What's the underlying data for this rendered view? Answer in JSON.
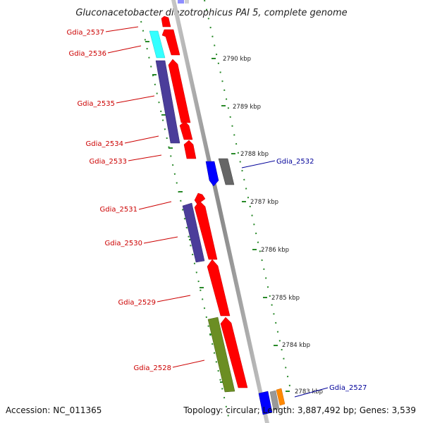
{
  "title": "Gluconacetobacter diazotrophicus PAI 5, complete genome",
  "footer": {
    "accession": "Accession: NC_011365",
    "summary": "Topology: circular; Length: 3,887,492 bp; Genes: 3,539"
  },
  "colors": {
    "reverse_label": "#cc0000",
    "forward_label": "#000099",
    "backbone": "#999999",
    "tick": "#2a8a2a"
  },
  "ticks": [
    "2790 kbp",
    "2789 kbp",
    "2788 kbp",
    "2787 kbp",
    "2786 kbp",
    "2785 kbp",
    "2784 kbp",
    "2783 kbp"
  ],
  "genes": [
    {
      "id": "Gdia_2537",
      "strand": "reverse"
    },
    {
      "id": "Gdia_2536",
      "strand": "reverse"
    },
    {
      "id": "Gdia_2535",
      "strand": "reverse"
    },
    {
      "id": "Gdia_2534",
      "strand": "reverse"
    },
    {
      "id": "Gdia_2533",
      "strand": "reverse"
    },
    {
      "id": "Gdia_2532",
      "strand": "forward"
    },
    {
      "id": "Gdia_2531",
      "strand": "reverse"
    },
    {
      "id": "Gdia_2530",
      "strand": "reverse"
    },
    {
      "id": "Gdia_2529",
      "strand": "reverse"
    },
    {
      "id": "Gdia_2528",
      "strand": "reverse"
    },
    {
      "id": "Gdia_2527",
      "strand": "forward"
    }
  ]
}
